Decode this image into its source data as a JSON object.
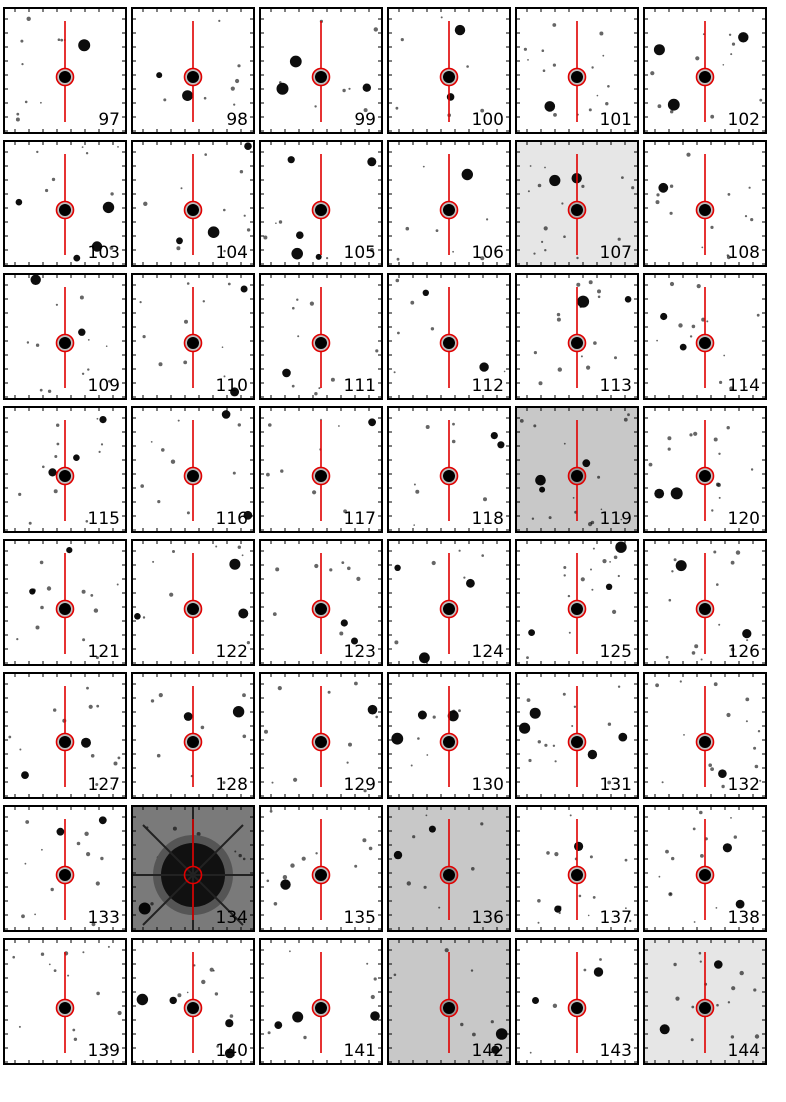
{
  "figure": {
    "marker_color": "#e00000",
    "background_levels": {
      "white": "#ffffff",
      "light": "#e6e6e6",
      "mid": "#c8c8c8",
      "dark_halo": "#7a7a7a"
    },
    "panels": [
      {
        "id": "97",
        "bg": "white"
      },
      {
        "id": "98",
        "bg": "white"
      },
      {
        "id": "99",
        "bg": "white"
      },
      {
        "id": "100",
        "bg": "white"
      },
      {
        "id": "101",
        "bg": "white"
      },
      {
        "id": "102",
        "bg": "white"
      },
      {
        "id": "103",
        "bg": "white"
      },
      {
        "id": "104",
        "bg": "white"
      },
      {
        "id": "105",
        "bg": "white"
      },
      {
        "id": "106",
        "bg": "white"
      },
      {
        "id": "107",
        "bg": "light"
      },
      {
        "id": "108",
        "bg": "white"
      },
      {
        "id": "109",
        "bg": "white"
      },
      {
        "id": "110",
        "bg": "white"
      },
      {
        "id": "111",
        "bg": "white"
      },
      {
        "id": "112",
        "bg": "white"
      },
      {
        "id": "113",
        "bg": "white"
      },
      {
        "id": "114",
        "bg": "white"
      },
      {
        "id": "115",
        "bg": "white"
      },
      {
        "id": "116",
        "bg": "white"
      },
      {
        "id": "117",
        "bg": "white"
      },
      {
        "id": "118",
        "bg": "white"
      },
      {
        "id": "119",
        "bg": "mid"
      },
      {
        "id": "120",
        "bg": "white"
      },
      {
        "id": "121",
        "bg": "white"
      },
      {
        "id": "122",
        "bg": "white"
      },
      {
        "id": "123",
        "bg": "white"
      },
      {
        "id": "124",
        "bg": "white"
      },
      {
        "id": "125",
        "bg": "white"
      },
      {
        "id": "126",
        "bg": "white"
      },
      {
        "id": "127",
        "bg": "white"
      },
      {
        "id": "128",
        "bg": "white"
      },
      {
        "id": "129",
        "bg": "white"
      },
      {
        "id": "130",
        "bg": "white"
      },
      {
        "id": "131",
        "bg": "white"
      },
      {
        "id": "132",
        "bg": "white"
      },
      {
        "id": "133",
        "bg": "white"
      },
      {
        "id": "134",
        "bg": "dark_halo"
      },
      {
        "id": "135",
        "bg": "white"
      },
      {
        "id": "136",
        "bg": "mid"
      },
      {
        "id": "137",
        "bg": "white"
      },
      {
        "id": "138",
        "bg": "white"
      },
      {
        "id": "139",
        "bg": "white"
      },
      {
        "id": "140",
        "bg": "white"
      },
      {
        "id": "141",
        "bg": "white"
      },
      {
        "id": "142",
        "bg": "mid"
      },
      {
        "id": "143",
        "bg": "white"
      },
      {
        "id": "144",
        "bg": "light"
      }
    ]
  }
}
